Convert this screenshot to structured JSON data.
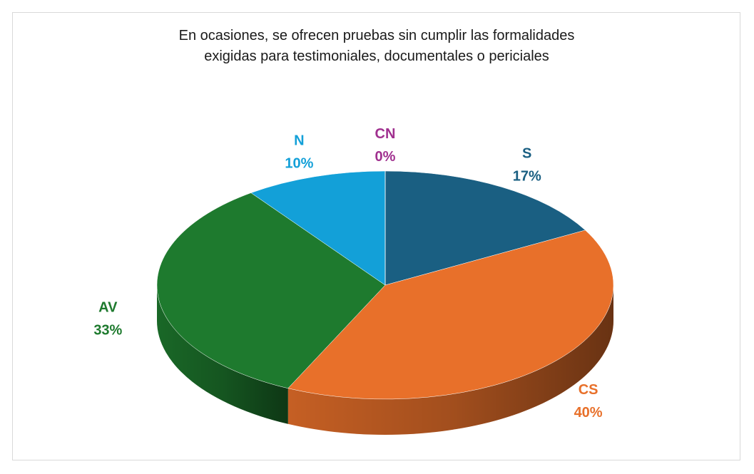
{
  "chart_data": {
    "type": "pie3d",
    "title": "En ocasiones, se ofrecen pruebas sin cumplir las formalidades exigidas para testimoniales, documentales o periciales",
    "categories": [
      "S",
      "CS",
      "AV",
      "N",
      "CN"
    ],
    "values": [
      17,
      40,
      33,
      10,
      0
    ],
    "value_labels": [
      "17%",
      "40%",
      "33%",
      "10%",
      "0%"
    ],
    "colors": [
      "#1a5f82",
      "#e8702a",
      "#1e7a2e",
      "#13a0d8",
      "#a0308f"
    ]
  }
}
